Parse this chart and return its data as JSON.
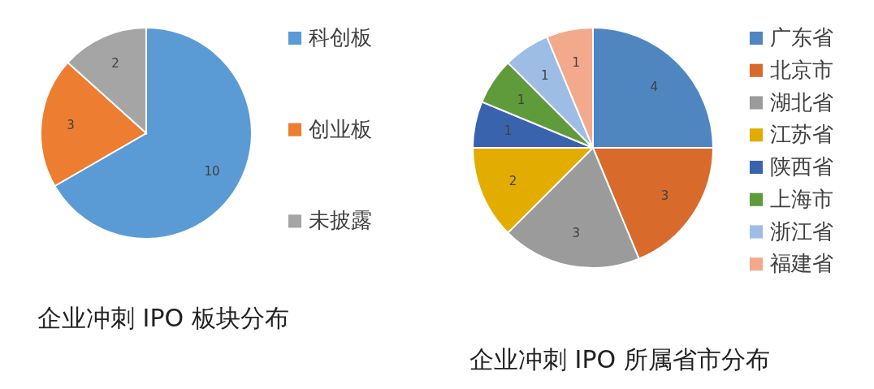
{
  "chart_data": [
    {
      "type": "pie",
      "title": "企业冲刺 IPO 板块分布",
      "categories": [
        "科创板",
        "创业板",
        "未披露"
      ],
      "values": [
        10,
        3,
        2
      ],
      "colors": [
        "#5b9bd5",
        "#ed7d31",
        "#a5a5a5"
      ],
      "data_labels": true,
      "legend": "right"
    },
    {
      "type": "pie",
      "title": "企业冲刺 IPO 所属省市分布",
      "categories": [
        "广东省",
        "北京市",
        "湖北省",
        "江苏省",
        "陕西省",
        "上海市",
        "浙江省",
        "福建省"
      ],
      "values": [
        4,
        3,
        3,
        2,
        1,
        1,
        1,
        1
      ],
      "colors": [
        "#4f86c0",
        "#d86b2b",
        "#9b9b9b",
        "#e2ac00",
        "#3a63ad",
        "#5f9a3b",
        "#9dbde4",
        "#f2a98c"
      ],
      "data_labels": true,
      "legend": "right"
    }
  ]
}
